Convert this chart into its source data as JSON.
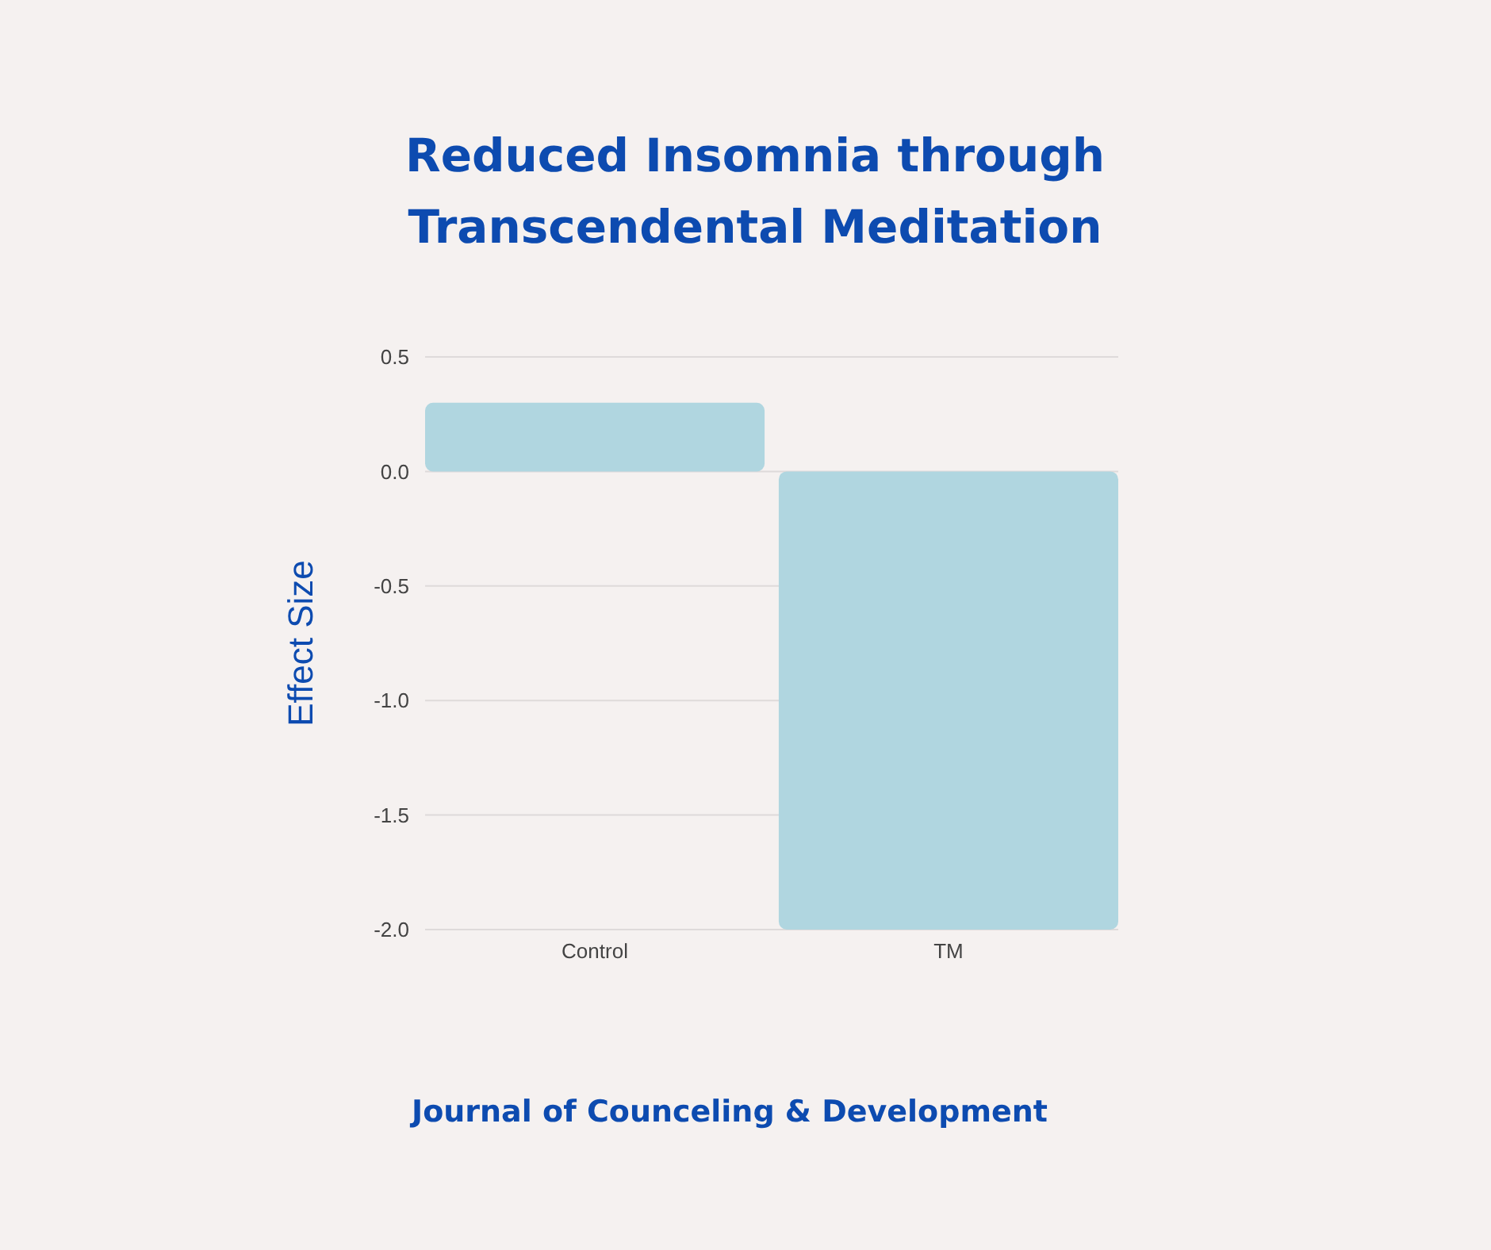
{
  "chart_data": {
    "type": "bar",
    "title": "Reduced Insomnia through\nTranscendental Meditation",
    "ylabel": "Effect Size",
    "categories": [
      "Control",
      "TM"
    ],
    "values": [
      0.3,
      -2.0
    ],
    "color": "#b0d6e0",
    "ylim": [
      -2.0,
      0.5
    ],
    "yticks": [
      {
        "value": 0.5,
        "label": "0.5"
      },
      {
        "value": 0,
        "label": "0.0"
      },
      {
        "value": -0.5,
        "label": "-0.5"
      },
      {
        "value": -1,
        "label": "-1.0"
      },
      {
        "value": -1.5,
        "label": "-1.5"
      },
      {
        "value": -2,
        "label": "-2.0"
      }
    ],
    "grid": "y",
    "annotations": [
      "Journal of Counceling & Development"
    ]
  }
}
